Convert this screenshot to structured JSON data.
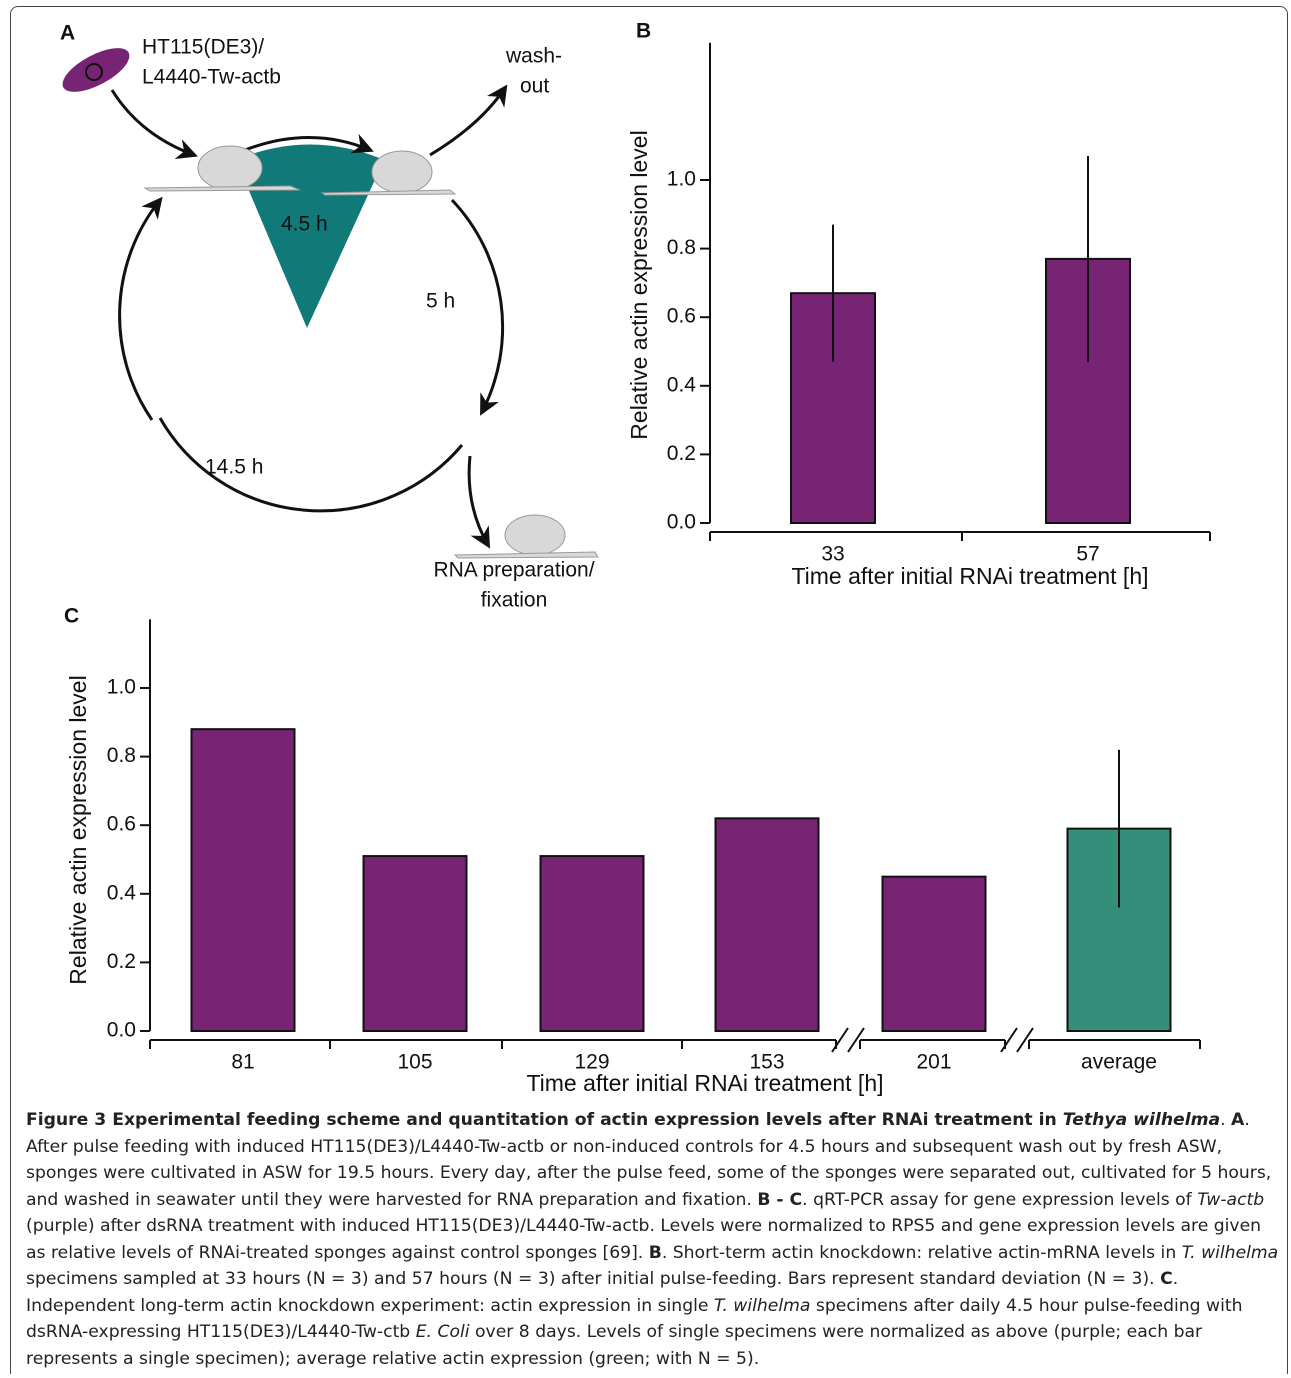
{
  "panel_a": {
    "label": "A",
    "strain": [
      "HT115(DE3)/",
      "L4440-Tw-actb"
    ],
    "washout": [
      "wash-",
      "out"
    ],
    "pulse_time": "4.5 h",
    "culture_time": "5 h",
    "cycle_time": "14.5 h",
    "harvest": [
      "RNA preparation/",
      "fixation"
    ]
  },
  "chart_data": [
    {
      "type": "bar",
      "panel_label": "B",
      "y_label": "Relative actin expression level",
      "x_label": "Time after initial RNAi treatment [h]",
      "categories": [
        "33",
        "57"
      ],
      "values": [
        0.67,
        0.77
      ],
      "errors": [
        0.2,
        0.3
      ],
      "color": "#772475",
      "ylim": [
        0,
        1.4
      ],
      "yticks": [
        {
          "value": 0,
          "label": "0.0"
        },
        {
          "value": 0.2,
          "label": "0.2"
        },
        {
          "value": 0.4,
          "label": "0.4"
        },
        {
          "value": 0.6,
          "label": "0.6"
        },
        {
          "value": 0.8,
          "label": "0.8"
        },
        {
          "value": 1.0,
          "label": "1.0"
        }
      ]
    },
    {
      "type": "bar",
      "panel_label": "C",
      "y_label": "Relative actin expression level",
      "x_label": "Time after initial RNAi treatment [h]",
      "categories": [
        "81",
        "105",
        "129",
        "153",
        "201",
        "average"
      ],
      "values": [
        0.88,
        0.51,
        0.51,
        0.62,
        0.45,
        0.59
      ],
      "errors": [
        null,
        null,
        null,
        null,
        null,
        0.23
      ],
      "colors": [
        "#772475",
        "#772475",
        "#772475",
        "#772475",
        "#772475",
        "#348f7a"
      ],
      "ylim": [
        0,
        1.2
      ],
      "yticks": [
        {
          "value": 0,
          "label": "0.0"
        },
        {
          "value": 0.2,
          "label": "0.2"
        },
        {
          "value": 0.4,
          "label": "0.4"
        },
        {
          "value": 0.6,
          "label": "0.6"
        },
        {
          "value": 0.8,
          "label": "0.8"
        },
        {
          "value": 1.0,
          "label": "1.0"
        }
      ]
    }
  ],
  "caption": [
    {
      "text": "Figure 3 Experimental feeding scheme and quantitation of actin expression levels after RNAi treatment in ",
      "style": "b"
    },
    {
      "text": "Tethya wilhelma",
      "style": "bi"
    },
    {
      "text": ". ",
      "style": "n"
    },
    {
      "text": "A",
      "style": "b"
    },
    {
      "text": ". After pulse feeding with induced HT115(DE3)/L4440-Tw-actb or non-induced controls for 4.5 hours and subsequent wash out by fresh ASW, sponges were cultivated in ASW for 19.5 hours. Every day, after the pulse feed, some of the sponges were separated out, cultivated for 5 hours, and washed in seawater until they were harvested for RNA preparation and fixation. ",
      "style": "n"
    },
    {
      "text": "B - C",
      "style": "b"
    },
    {
      "text": ". qRT-PCR assay for gene expression levels of ",
      "style": "n"
    },
    {
      "text": "Tw-actb",
      "style": "i"
    },
    {
      "text": " (purple) after dsRNA treatment with induced HT115(DE3)/L4440-Tw-actb. Levels were normalized to RPS5 and gene expression levels are given as relative levels of RNAi-treated sponges against control sponges [69]. ",
      "style": "n"
    },
    {
      "text": "B",
      "style": "b"
    },
    {
      "text": ". Short-term actin knockdown: relative actin-mRNA levels in ",
      "style": "n"
    },
    {
      "text": "T. wilhelma",
      "style": "i"
    },
    {
      "text": " specimens sampled at 33 hours (N = 3) and 57 hours (N = 3) after initial pulse-feeding. Bars represent standard deviation (N = 3). ",
      "style": "n"
    },
    {
      "text": "C",
      "style": "b"
    },
    {
      "text": ". Independent long-term actin knockdown experiment: actin expression in single ",
      "style": "n"
    },
    {
      "text": "T. wilhelma",
      "style": "i"
    },
    {
      "text": " specimens after daily 4.5 hour pulse-feeding with dsRNA-expressing HT115(DE3)/L4440-Tw-ctb ",
      "style": "n"
    },
    {
      "text": "E. Coli",
      "style": "i"
    },
    {
      "text": " over 8 days. Levels of single specimens were normalized as above (purple; each bar represents a single specimen); average relative actin expression (green; with N = 5).",
      "style": "n"
    }
  ]
}
